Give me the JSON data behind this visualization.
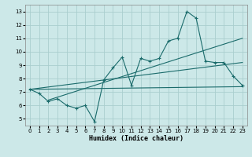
{
  "xlabel": "Humidex (Indice chaleur)",
  "bg_color": "#cce8e8",
  "line_color": "#1a6b6b",
  "grid_color": "#aacece",
  "xlim": [
    -0.5,
    23.5
  ],
  "ylim": [
    4.5,
    13.5
  ],
  "xticks": [
    0,
    1,
    2,
    3,
    4,
    5,
    6,
    7,
    8,
    9,
    10,
    11,
    12,
    13,
    14,
    15,
    16,
    17,
    18,
    19,
    20,
    21,
    22,
    23
  ],
  "yticks": [
    5,
    6,
    7,
    8,
    9,
    10,
    11,
    12,
    13
  ],
  "main_line": {
    "x": [
      0,
      1,
      2,
      3,
      4,
      5,
      6,
      7,
      8,
      9,
      10,
      11,
      12,
      13,
      14,
      15,
      16,
      17,
      18,
      19,
      20,
      21,
      22,
      23
    ],
    "y": [
      7.2,
      6.9,
      6.3,
      6.5,
      6.0,
      5.8,
      6.0,
      4.8,
      7.9,
      8.8,
      9.6,
      7.5,
      9.5,
      9.3,
      9.5,
      10.8,
      11.0,
      13.0,
      12.5,
      9.3,
      9.2,
      9.2,
      8.2,
      7.5
    ]
  },
  "ref_lines": [
    {
      "x": [
        0,
        23
      ],
      "y": [
        7.2,
        7.4
      ]
    },
    {
      "x": [
        0,
        23
      ],
      "y": [
        7.2,
        9.2
      ]
    },
    {
      "x": [
        2,
        23
      ],
      "y": [
        6.4,
        11.0
      ]
    }
  ]
}
